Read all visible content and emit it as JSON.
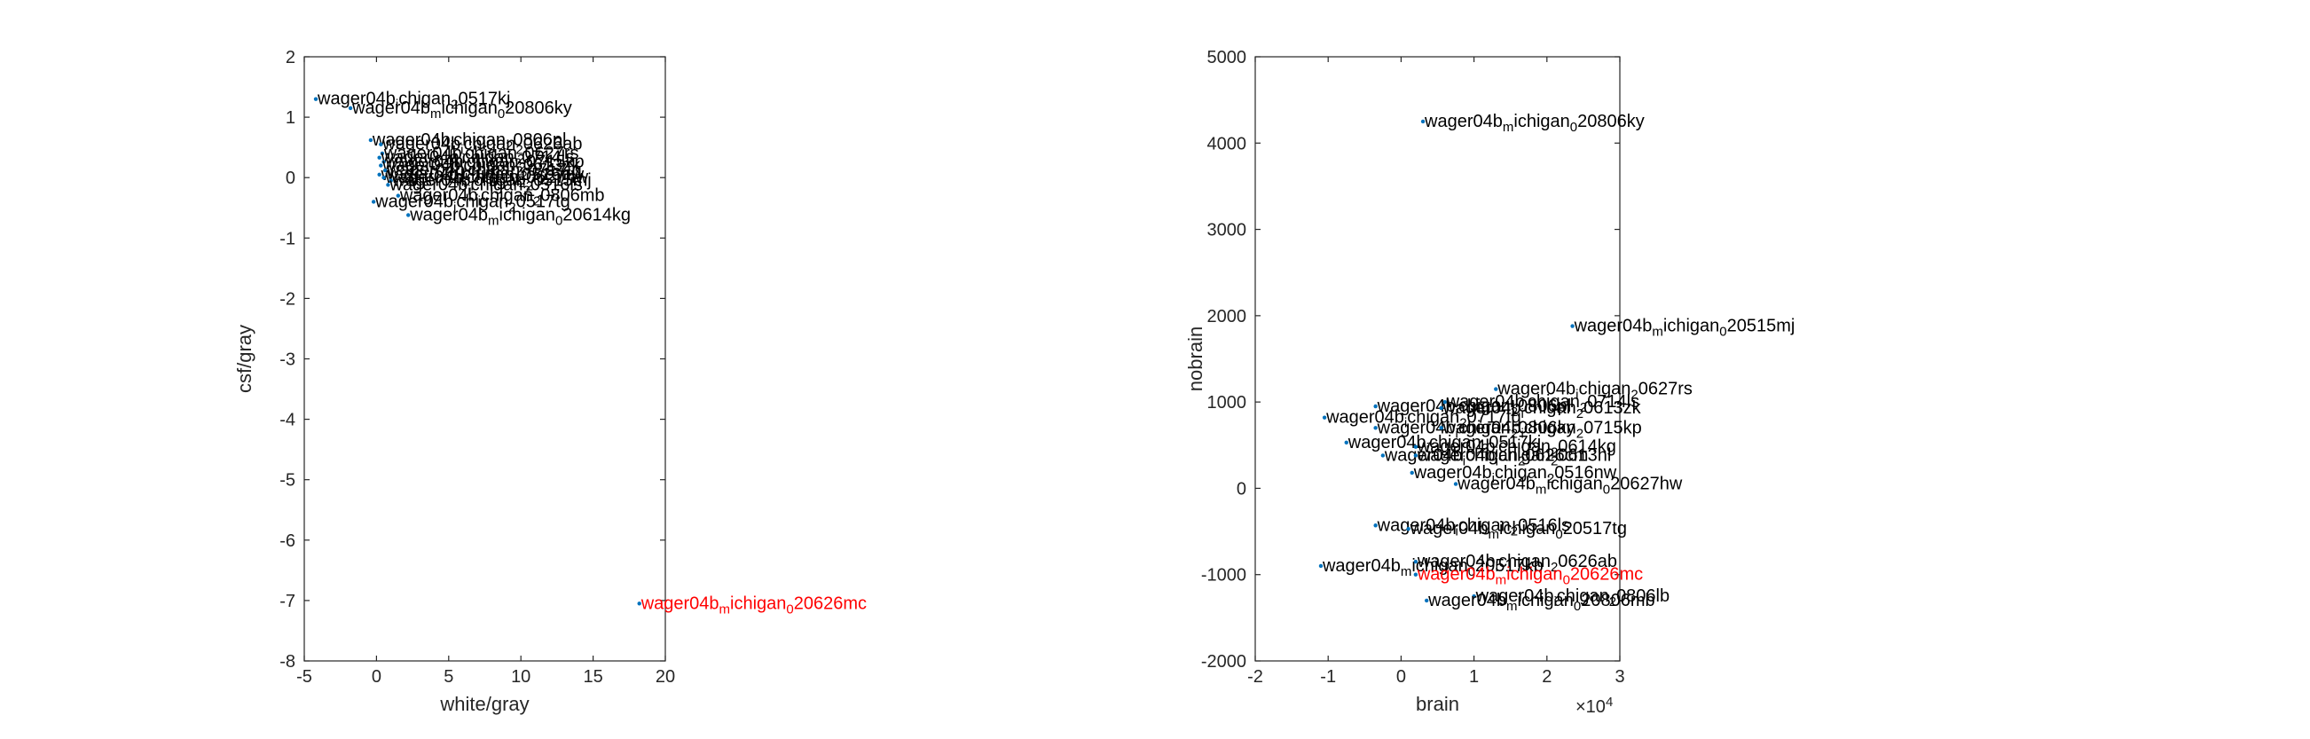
{
  "colors": {
    "axis": "#262626",
    "point": "#0072bd",
    "label": "#000000",
    "highlight": "#ff0000"
  },
  "chart_data": [
    {
      "type": "scatter",
      "xlabel": "white/gray",
      "ylabel": "csf/gray",
      "xlim": [
        -5,
        20
      ],
      "ylim": [
        -8,
        2
      ],
      "xticks": [
        "-5",
        "0",
        "5",
        "10",
        "15",
        "20"
      ],
      "yticks": [
        "2",
        "1",
        "0",
        "-1",
        "-2",
        "-3",
        "-4",
        "-5",
        "-6",
        "-7",
        "-8"
      ],
      "points": [
        {
          "x": -4.2,
          "y": 1.3,
          "label": "wager04b_ichigan_20517kj",
          "highlight": false
        },
        {
          "x": -1.8,
          "y": 1.15,
          "label": "wager04b_michigan_020806ky",
          "highlight": false
        },
        {
          "x": -0.4,
          "y": 0.62,
          "label": "wager04b_ichigan_20806pl",
          "highlight": false
        },
        {
          "x": 0.3,
          "y": 0.55,
          "label": "wager04b_ichigan_20626ab",
          "highlight": false
        },
        {
          "x": 0.4,
          "y": 0.4,
          "label": "wager04b_ichigan_20627rs",
          "highlight": false
        },
        {
          "x": 0.2,
          "y": 0.33,
          "label": "wager04b_ichigan_20714ls",
          "highlight": false
        },
        {
          "x": 0.5,
          "y": 0.26,
          "label": "wager04b_ichigan_20715kp",
          "highlight": false
        },
        {
          "x": 0.3,
          "y": 0.2,
          "label": "wager04b_ichigan_20613zk",
          "highlight": false
        },
        {
          "x": 0.6,
          "y": 0.12,
          "label": "wager04b_ichigan_20717tg",
          "highlight": false
        },
        {
          "x": 0.2,
          "y": 0.05,
          "label": "wager04b_ichigan_20516nw",
          "highlight": false
        },
        {
          "x": 0.5,
          "y": 0.0,
          "label": "wager04b_ichigan_20627hw",
          "highlight": false
        },
        {
          "x": 1.0,
          "y": -0.05,
          "label": "wager04b_ichigan_20515mj",
          "highlight": false
        },
        {
          "x": 0.8,
          "y": -0.12,
          "label": "wager04b_ichigan_20516ls",
          "highlight": false
        },
        {
          "x": 1.5,
          "y": -0.3,
          "label": "wager04b_ichigan_20806mb",
          "highlight": false
        },
        {
          "x": -0.2,
          "y": -0.4,
          "label": "wager04b_ichigan_20517tg",
          "highlight": false
        },
        {
          "x": 2.2,
          "y": -0.62,
          "label": "wager04b_michigan_020614kg",
          "highlight": false
        },
        {
          "x": 18.2,
          "y": -7.05,
          "label": "wager04b_michigan_020626mc",
          "highlight": true
        }
      ]
    },
    {
      "type": "scatter",
      "xlabel": "brain",
      "ylabel": "nobrain",
      "xlim": [
        -2,
        3
      ],
      "ylim": [
        -2000,
        5000
      ],
      "x_multiplier": "×10",
      "x_multiplier_exp": "4",
      "xticks": [
        "-2",
        "-1",
        "0",
        "1",
        "2",
        "3"
      ],
      "yticks": [
        "5000",
        "4000",
        "3000",
        "2000",
        "1000",
        "0",
        "-1000",
        "-2000"
      ],
      "points": [
        {
          "x": 0.3,
          "y": 4250,
          "label": "wager04b_michigan_020806ky",
          "highlight": false
        },
        {
          "x": 2.35,
          "y": 1880,
          "label": "wager04b_michigan_020515mj",
          "highlight": false
        },
        {
          "x": 1.3,
          "y": 1150,
          "label": "wager04b_ichigan_20627rs",
          "highlight": false
        },
        {
          "x": 0.6,
          "y": 1000,
          "label": "wager04b_ichigan_20714ls",
          "highlight": false
        },
        {
          "x": -0.35,
          "y": 950,
          "label": "wager04b_ichigan_20806pl",
          "highlight": false
        },
        {
          "x": 0.55,
          "y": 930,
          "label": "wager04b_ichigan_20613zk",
          "highlight": false
        },
        {
          "x": -1.05,
          "y": 820,
          "label": "wager04b_ichigan_20717tg",
          "highlight": false
        },
        {
          "x": -0.35,
          "y": 700,
          "label": "wager04b_ichigan_20806ky",
          "highlight": false
        },
        {
          "x": 0.55,
          "y": 700,
          "label": "wager04b_ichigan_20715kp",
          "highlight": false
        },
        {
          "x": -0.75,
          "y": 530,
          "label": "wager04b_ichigan_20517kj",
          "highlight": false
        },
        {
          "x": 0.2,
          "y": 480,
          "label": "wager04b_ichigan_20614kg",
          "highlight": false
        },
        {
          "x": -0.25,
          "y": 380,
          "label": "wager04b_ichigan_20626cm",
          "highlight": false
        },
        {
          "x": 0.2,
          "y": 380,
          "label": "wager04b_ichigan_20613hl",
          "highlight": false
        },
        {
          "x": 0.15,
          "y": 180,
          "label": "wager04b_ichigan_20516nw",
          "highlight": false
        },
        {
          "x": 0.75,
          "y": 50,
          "label": "wager04b_michigan_020627hw",
          "highlight": false
        },
        {
          "x": -0.35,
          "y": -430,
          "label": "wager04b_ichigan_20516ls",
          "highlight": false
        },
        {
          "x": 0.1,
          "y": -470,
          "label": "wager04b_michigan_020517tg",
          "highlight": false
        },
        {
          "x": -1.1,
          "y": -900,
          "label": "wager04b_michigan_020517kb",
          "highlight": false
        },
        {
          "x": 0.2,
          "y": -850,
          "label": "wager04b_ichigan_20626ab",
          "highlight": false
        },
        {
          "x": 0.2,
          "y": -1000,
          "label": "wager04b_michigan_020626mc",
          "highlight": true
        },
        {
          "x": 1.0,
          "y": -1250,
          "label": "wager04b_ichigan_20806lb",
          "highlight": false
        },
        {
          "x": 0.35,
          "y": -1300,
          "label": "wager04b_michigan_020806mb",
          "highlight": false
        }
      ]
    }
  ]
}
